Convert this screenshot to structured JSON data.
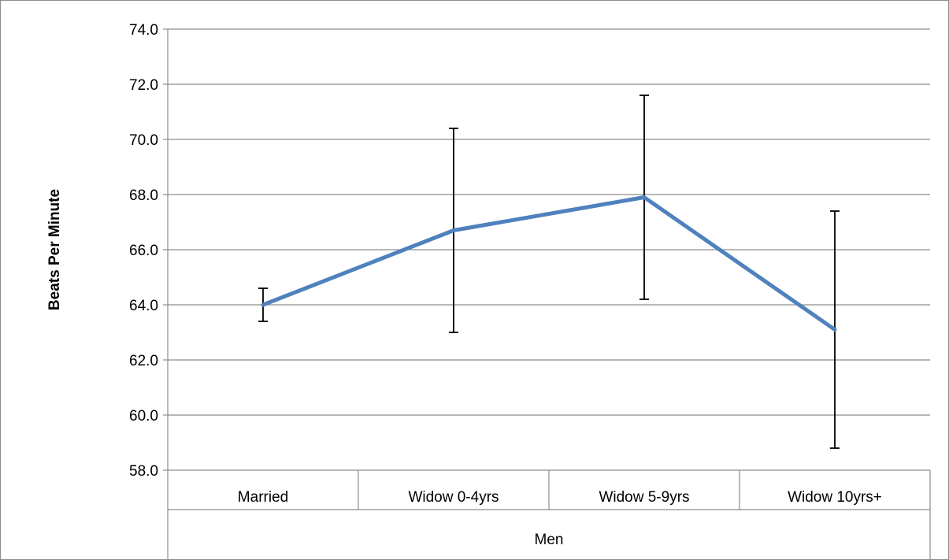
{
  "chart_data": {
    "type": "line",
    "title": "",
    "ylabel": "Beats Per Minute",
    "xlabel": "Men",
    "group_label": "Men",
    "ylim": [
      58,
      74
    ],
    "y_ticks": [
      58,
      60,
      62,
      64,
      66,
      68,
      70,
      72,
      74
    ],
    "y_tick_labels": [
      "58.0",
      "60.0",
      "62.0",
      "64.0",
      "66.0",
      "68.0",
      "70.0",
      "72.0",
      "74.0"
    ],
    "categories": [
      "Married",
      "Widow 0-4yrs",
      "Widow 5-9yrs",
      "Widow 10yrs+"
    ],
    "series": [
      {
        "values": [
          64.0,
          66.7,
          67.9,
          63.1
        ],
        "error_low": [
          63.4,
          63.0,
          64.2,
          58.8
        ],
        "error_high": [
          64.6,
          70.4,
          71.6,
          67.4
        ],
        "color": "#4F81BD"
      }
    ],
    "grid": true,
    "legend": "none"
  }
}
